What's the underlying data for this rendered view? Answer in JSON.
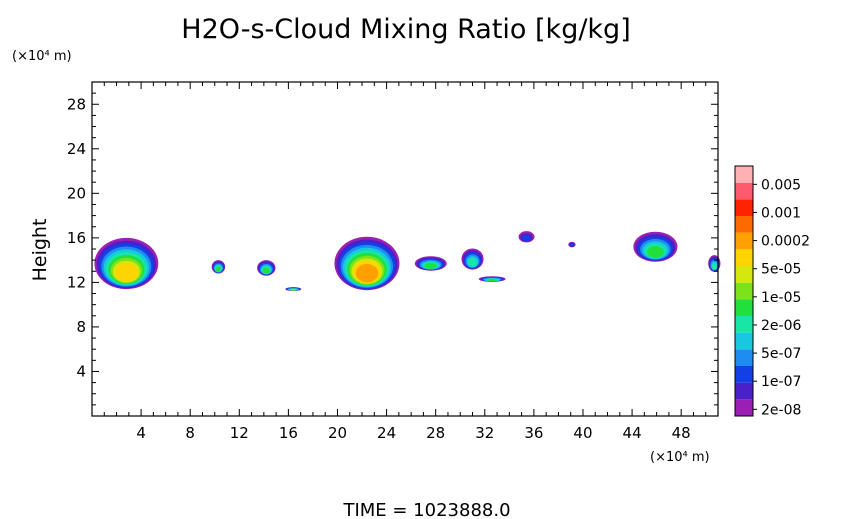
{
  "chart_data": {
    "type": "heatmap",
    "title": "H2O-s-Cloud Mixing Ratio [kg/kg]",
    "ylabel": "Height",
    "xlabel": "",
    "x_unit": "(×10⁴ m)",
    "y_unit": "(×10⁴ m)",
    "xlim": [
      0,
      51
    ],
    "ylim": [
      0,
      30
    ],
    "x_ticks": [
      4,
      8,
      12,
      16,
      20,
      24,
      28,
      32,
      36,
      40,
      44,
      48
    ],
    "y_ticks": [
      4,
      8,
      12,
      16,
      20,
      24,
      28
    ],
    "x_tick_labels": [
      "4",
      "8",
      "12",
      "16",
      "20",
      "24",
      "28",
      "32",
      "36",
      "40",
      "44",
      "48"
    ],
    "y_tick_labels": [
      "4",
      "8",
      "12",
      "16",
      "20",
      "24",
      "28"
    ],
    "colorbar": {
      "labels": [
        "0.005",
        "0.001",
        "0.0002",
        "5e-05",
        "1e-05",
        "2e-06",
        "5e-07",
        "1e-07",
        "2e-08"
      ],
      "colors": [
        "#9b1fb5",
        "#4a21c9",
        "#1240e6",
        "#1e8cf0",
        "#17c8e0",
        "#18e6a6",
        "#21e03c",
        "#7ce21a",
        "#d6e60f",
        "#ffd400",
        "#ffa000",
        "#ff6a00",
        "#ff2400",
        "#ff5a6e",
        "#ffb0b4"
      ]
    },
    "cloud_cells": [
      {
        "x": 2.8,
        "y": 13.7,
        "w": 5.2,
        "h": 4.6,
        "level": 9
      },
      {
        "x": 10.3,
        "y": 13.4,
        "w": 1.1,
        "h": 1.2,
        "level": 6
      },
      {
        "x": 14.2,
        "y": 13.3,
        "w": 1.5,
        "h": 1.4,
        "level": 6
      },
      {
        "x": 16.4,
        "y": 11.4,
        "w": 1.3,
        "h": 0.35,
        "level": 7
      },
      {
        "x": 22.4,
        "y": 13.7,
        "w": 5.3,
        "h": 4.8,
        "level": 10
      },
      {
        "x": 27.6,
        "y": 13.7,
        "w": 2.6,
        "h": 1.3,
        "level": 6
      },
      {
        "x": 31.0,
        "y": 14.1,
        "w": 1.8,
        "h": 1.9,
        "level": 5
      },
      {
        "x": 32.6,
        "y": 12.3,
        "w": 2.2,
        "h": 0.5,
        "level": 6
      },
      {
        "x": 35.4,
        "y": 16.1,
        "w": 1.3,
        "h": 1.0,
        "level": 2
      },
      {
        "x": 39.1,
        "y": 15.4,
        "w": 0.6,
        "h": 0.5,
        "level": 2
      },
      {
        "x": 45.9,
        "y": 15.2,
        "w": 3.6,
        "h": 2.7,
        "level": 6
      },
      {
        "x": 50.7,
        "y": 13.7,
        "w": 1.0,
        "h": 1.5,
        "level": 5
      }
    ]
  },
  "footer": {
    "time_label": "TIME  =  1023888.0"
  }
}
